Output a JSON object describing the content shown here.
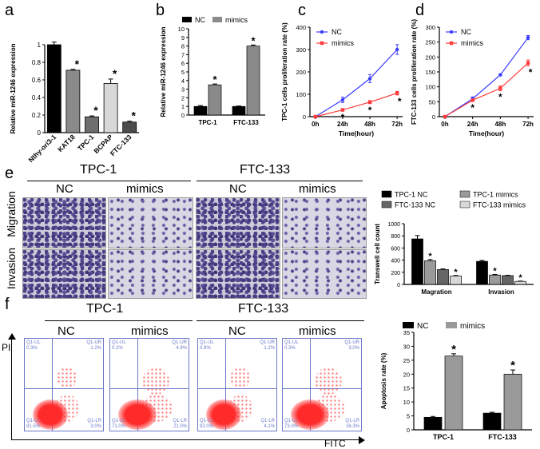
{
  "panels": {
    "a": {
      "label": "a"
    },
    "b": {
      "label": "b"
    },
    "c": {
      "label": "c"
    },
    "d": {
      "label": "d"
    },
    "e": {
      "label": "e",
      "group1": "TPC-1",
      "group2": "FTC-133",
      "nc": "NC",
      "mimics": "mimics",
      "row1": "Migration",
      "row2": "Invasion"
    },
    "f": {
      "label": "f",
      "group1": "TPC-1",
      "group2": "FTC-133",
      "nc": "NC",
      "mimics": "mimics",
      "ylab": "PI",
      "xlab": "FITC",
      "quads": [
        {
          "ul": "Q1-UL",
          "ulv": "0.3%",
          "ur": "Q1-UR",
          "urv": "1.2%",
          "ll": "Q1-LL",
          "llv": "91.5%",
          "lr": "Q1-LR",
          "lrv": "3.0%"
        },
        {
          "ul": "Q1-UL",
          "ulv": "0.2%",
          "ur": "Q1-UR",
          "urv": "4.9%",
          "ll": "Q1-LL",
          "llv": "71.0%",
          "lr": "Q1-LR",
          "lrv": "21.0%"
        },
        {
          "ul": "Q1-UL",
          "ulv": "0.8%",
          "ur": "Q1-UR",
          "urv": "1.2%",
          "ll": "Q1-LL",
          "llv": "92.0%",
          "lr": "Q1-LR",
          "lrv": "4.1%"
        },
        {
          "ul": "Q1-UL",
          "ulv": "0.3%",
          "ur": "Q1-UR",
          "urv": "3.0%",
          "ll": "Q1-LL",
          "llv": "73.0%",
          "lr": "Q1-LR",
          "lrv": "16.3%"
        }
      ]
    }
  },
  "chart_data": [
    {
      "id": "a",
      "type": "bar",
      "ylabel": "Relative miR-1246 expression",
      "categories": [
        "Nthy-ori3-1",
        "KAT18",
        "TPC-1",
        "BCPAP",
        "FTC-133"
      ],
      "values": [
        1.0,
        0.71,
        0.18,
        0.56,
        0.12
      ],
      "errors": [
        0.03,
        0.01,
        0.01,
        0.05,
        0.01
      ],
      "colors": [
        "#000000",
        "#8a8a8a",
        "#6e6e6e",
        "#d8d8d8",
        "#4d4d4d"
      ],
      "star": [
        false,
        true,
        true,
        true,
        true
      ],
      "ylim": [
        0,
        1.0
      ],
      "yticks": [
        0.0,
        0.2,
        0.4,
        0.6,
        0.8,
        1.0
      ]
    },
    {
      "id": "b",
      "type": "bar",
      "ylabel": "Relative miR-1246 expression",
      "categories": [
        "TPC-1",
        "FTC-133"
      ],
      "series": [
        {
          "name": "NC",
          "values": [
            1.0,
            1.0
          ],
          "errors": [
            0.1,
            0.05
          ],
          "color": "#000000"
        },
        {
          "name": "mimics",
          "values": [
            3.5,
            8.0
          ],
          "errors": [
            0.1,
            0.12
          ],
          "color": "#8a8a8a"
        }
      ],
      "star": [
        true,
        true
      ],
      "ylim": [
        0,
        10
      ],
      "yticks": [
        0,
        1,
        2,
        3,
        4,
        5,
        6,
        7,
        8,
        9,
        10
      ],
      "legend": "top"
    },
    {
      "id": "c",
      "type": "line",
      "ylabel": "TPC-1 cells proliferation rate (%)",
      "xlabel": "Time(hour)",
      "categories": [
        "0h",
        "24h",
        "48h",
        "72h"
      ],
      "series": [
        {
          "name": "NC",
          "values": [
            0,
            75,
            170,
            300
          ],
          "errors": [
            0,
            12,
            18,
            22
          ],
          "color": "#3b3bff"
        },
        {
          "name": "mimics",
          "values": [
            0,
            30,
            65,
            105
          ],
          "errors": [
            0,
            5,
            7,
            8
          ],
          "color": "#ff3b3b"
        }
      ],
      "star": [
        false,
        true,
        true,
        true
      ],
      "ylim": [
        0,
        400
      ],
      "yticks": [
        0,
        100,
        200,
        300,
        400
      ],
      "legend": "top-left"
    },
    {
      "id": "d",
      "type": "line",
      "ylabel": "FTC-133 cells proliferation rate (%)",
      "xlabel": "Time(hour)",
      "categories": [
        "0h",
        "24h",
        "48h",
        "72h"
      ],
      "series": [
        {
          "name": "NC",
          "values": [
            0,
            60,
            140,
            265
          ],
          "errors": [
            0,
            6,
            3,
            7
          ],
          "color": "#3b3bff"
        },
        {
          "name": "mimics",
          "values": [
            0,
            55,
            95,
            180
          ],
          "errors": [
            0,
            4,
            8,
            10
          ],
          "color": "#ff3b3b"
        }
      ],
      "star": [
        false,
        true,
        true,
        true
      ],
      "ylim": [
        0,
        300
      ],
      "yticks": [
        0,
        50,
        100,
        150,
        200,
        250,
        300
      ],
      "legend": "top-left"
    },
    {
      "id": "e",
      "type": "bar",
      "ylabel": "Transwell cell count",
      "categories": [
        "Magration",
        "Invasion"
      ],
      "series": [
        {
          "name": "TPC-1 NC",
          "values": [
            750,
            380
          ],
          "errors": [
            55,
            15
          ],
          "color": "#000000"
        },
        {
          "name": "TPC-1 mimics",
          "values": [
            390,
            155
          ],
          "errors": [
            20,
            10
          ],
          "color": "#9a9a9a"
        },
        {
          "name": "FTC-133 NC",
          "values": [
            245,
            145
          ],
          "errors": [
            10,
            6
          ],
          "color": "#666666"
        },
        {
          "name": "FTC-133 mimics",
          "values": [
            140,
            50
          ],
          "errors": [
            8,
            5
          ],
          "color": "#d8d8d8"
        }
      ],
      "star": [
        [
          false,
          true,
          false,
          true
        ],
        [
          false,
          true,
          false,
          true
        ]
      ],
      "ylim": [
        0,
        1000
      ],
      "yticks": [
        0,
        200,
        400,
        600,
        800,
        1000
      ],
      "legend": "top"
    },
    {
      "id": "f",
      "type": "bar",
      "ylabel": "Apoptosis rate (%)",
      "categories": [
        "TPC-1",
        "FTC-133"
      ],
      "series": [
        {
          "name": "NC",
          "values": [
            4.5,
            6.0
          ],
          "errors": [
            0.3,
            0.3
          ],
          "color": "#000000"
        },
        {
          "name": "mimics",
          "values": [
            26.5,
            20.0
          ],
          "errors": [
            0.8,
            1.5
          ],
          "color": "#9a9a9a"
        }
      ],
      "star": [
        true,
        true
      ],
      "ylim": [
        0,
        35
      ],
      "yticks": [
        0,
        5,
        10,
        15,
        20,
        25,
        30,
        35
      ],
      "legend": "top"
    }
  ]
}
